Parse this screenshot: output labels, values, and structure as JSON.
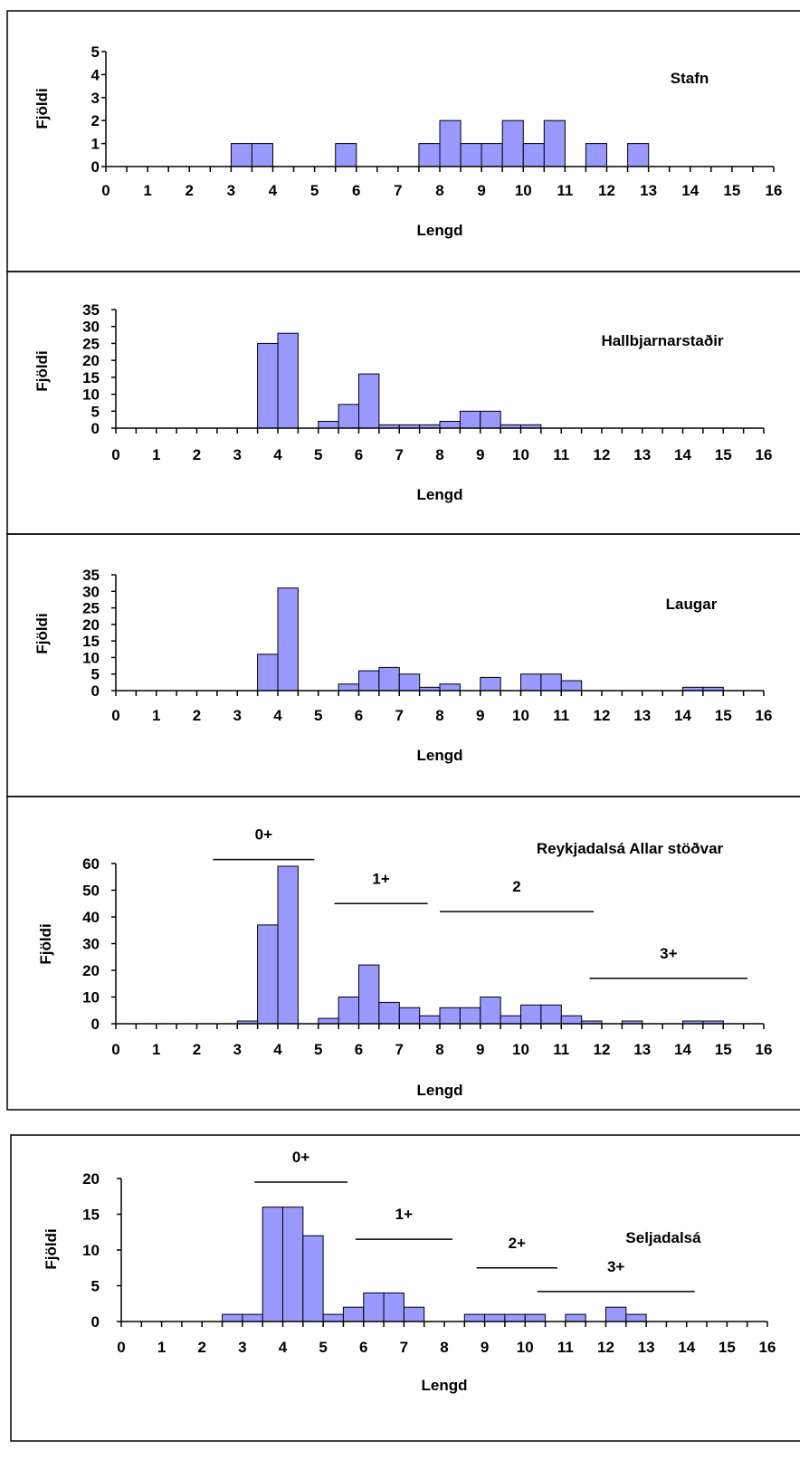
{
  "chart_data": [
    {
      "type": "bar",
      "title": "Stafn",
      "xlabel": "Lengd",
      "ylabel": "Fjöldi",
      "bin_width": 0.5,
      "xlim": [
        0,
        16
      ],
      "ylim": [
        0,
        5
      ],
      "yticks": [
        0,
        1,
        2,
        3,
        4,
        5
      ],
      "x_tick_labels": [
        "0",
        "1",
        "2",
        "3",
        "4",
        "5",
        "6",
        "7",
        "8",
        "9",
        "10",
        "11",
        "12",
        "13",
        "14",
        "15",
        "16"
      ],
      "x": [
        3.5,
        4,
        6,
        8,
        8.5,
        9,
        9.5,
        10,
        10.5,
        11,
        12,
        13
      ],
      "values": [
        1,
        1,
        1,
        1,
        2,
        1,
        1,
        2,
        1,
        2,
        1,
        1
      ],
      "annotations": []
    },
    {
      "type": "bar",
      "title": "Hallbjarnarstaðir",
      "xlabel": "Lengd",
      "ylabel": "Fjöldi",
      "bin_width": 0.5,
      "xlim": [
        0,
        16
      ],
      "ylim": [
        0,
        35
      ],
      "yticks": [
        0,
        5,
        10,
        15,
        20,
        25,
        30,
        35
      ],
      "x_tick_labels": [
        "0",
        "1",
        "2",
        "3",
        "4",
        "5",
        "6",
        "7",
        "8",
        "9",
        "10",
        "11",
        "12",
        "13",
        "14",
        "15",
        "16"
      ],
      "x": [
        4,
        4.5,
        5.5,
        6,
        6.5,
        7,
        7.5,
        8,
        8.5,
        9,
        9.5,
        10,
        10.5
      ],
      "values": [
        25,
        28,
        2,
        7,
        16,
        1,
        1,
        1,
        2,
        5,
        5,
        1,
        1
      ],
      "annotations": []
    },
    {
      "type": "bar",
      "title": "Laugar",
      "xlabel": "Lengd",
      "ylabel": "Fjöldi",
      "bin_width": 0.5,
      "xlim": [
        0,
        16
      ],
      "ylim": [
        0,
        35
      ],
      "yticks": [
        0,
        5,
        10,
        15,
        20,
        25,
        30,
        35
      ],
      "x_tick_labels": [
        "0",
        "1",
        "2",
        "3",
        "4",
        "5",
        "6",
        "7",
        "8",
        "9",
        "10",
        "11",
        "12",
        "13",
        "14",
        "15",
        "16"
      ],
      "x": [
        4,
        4.5,
        6,
        6.5,
        7,
        7.5,
        8,
        8.5,
        9.5,
        10.5,
        11,
        11.5,
        14.5,
        15
      ],
      "values": [
        11,
        31,
        2,
        6,
        7,
        5,
        1,
        2,
        4,
        5,
        5,
        3,
        1,
        1
      ],
      "annotations": []
    },
    {
      "type": "bar",
      "title": "Reykjadalsá Allar stöðvar",
      "xlabel": "Lengd",
      "ylabel": "Fjöldi",
      "bin_width": 0.5,
      "xlim": [
        0,
        16
      ],
      "ylim": [
        0,
        60
      ],
      "yticks": [
        0,
        10,
        20,
        30,
        40,
        50,
        60
      ],
      "x_tick_labels": [
        "0",
        "1",
        "2",
        "3",
        "4",
        "5",
        "6",
        "7",
        "8",
        "9",
        "10",
        "11",
        "12",
        "13",
        "14",
        "15",
        "16"
      ],
      "x": [
        3.5,
        4,
        4.5,
        5.5,
        6,
        6.5,
        7,
        7.5,
        8,
        8.5,
        9,
        9.5,
        10,
        10.5,
        11,
        11.5,
        12,
        13,
        14.5,
        15
      ],
      "values": [
        1,
        37,
        59,
        2,
        10,
        22,
        8,
        6,
        3,
        6,
        6,
        10,
        3,
        7,
        7,
        3,
        1,
        1,
        1,
        1
      ],
      "annotations": [
        {
          "label": "0+",
          "x_from": 2.4,
          "x_to": 4.9,
          "y": 61.5
        },
        {
          "label": "1+",
          "x_from": 5.4,
          "x_to": 7.7,
          "y": 45
        },
        {
          "label": "2",
          "x_from": 8.0,
          "x_to": 11.8,
          "y": 42
        },
        {
          "label": "3+",
          "x_from": 11.7,
          "x_to": 15.6,
          "y": 17
        }
      ]
    },
    {
      "type": "bar",
      "title": "Seljadalsá",
      "xlabel": "Lengd",
      "ylabel": "Fjöldi",
      "bin_width": 0.5,
      "xlim": [
        0,
        16
      ],
      "ylim": [
        0,
        20
      ],
      "yticks": [
        0,
        5,
        10,
        15,
        20
      ],
      "x_tick_labels": [
        "0",
        "1",
        "2",
        "3",
        "4",
        "5",
        "6",
        "7",
        "8",
        "9",
        "10",
        "11",
        "12",
        "13",
        "14",
        "15",
        "16"
      ],
      "x": [
        3,
        3.5,
        4,
        4.5,
        5,
        5.5,
        6,
        6.5,
        7,
        7.5,
        9,
        9.5,
        10,
        10.5,
        11.5,
        12.5,
        13
      ],
      "values": [
        1,
        1,
        16,
        16,
        12,
        1,
        2,
        4,
        4,
        2,
        1,
        1,
        1,
        1,
        1,
        2,
        1
      ],
      "annotations": [
        {
          "label": "0+",
          "x_from": 3.3,
          "x_to": 5.6,
          "y": 19.5
        },
        {
          "label": "1+",
          "x_from": 5.8,
          "x_to": 8.2,
          "y": 11.5
        },
        {
          "label": "2+",
          "x_from": 8.8,
          "x_to": 10.8,
          "y": 7.5
        },
        {
          "label": "3+",
          "x_from": 10.3,
          "x_to": 14.2,
          "y": 4.2
        }
      ]
    }
  ]
}
